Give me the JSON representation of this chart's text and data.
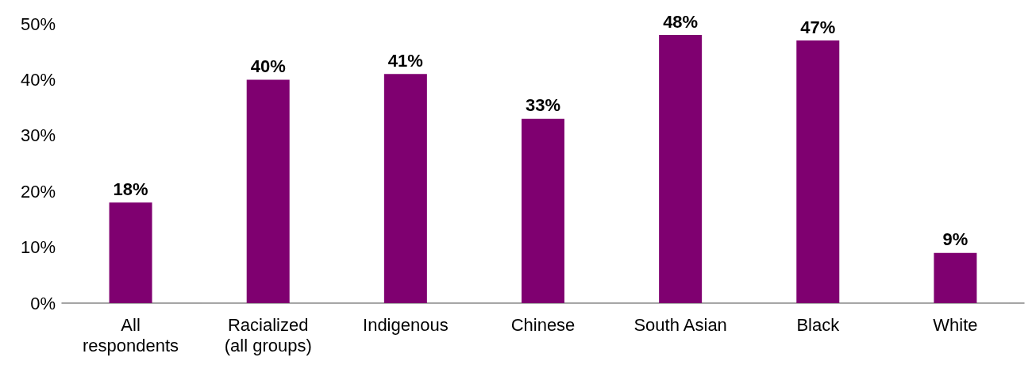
{
  "chart_data": {
    "type": "bar",
    "categories": [
      "All\nrespondents",
      "Racialized\n(all groups)",
      "Indigenous",
      "Chinese",
      "South Asian",
      "Black",
      "White"
    ],
    "values": [
      18,
      40,
      41,
      33,
      48,
      47,
      9
    ],
    "value_labels": [
      "18%",
      "40%",
      "41%",
      "33%",
      "48%",
      "47%",
      "9%"
    ],
    "color": "#7f0070",
    "ylim": [
      0,
      50
    ],
    "yticks": [
      {
        "value": 0,
        "label": "0%"
      },
      {
        "value": 10,
        "label": "10%"
      },
      {
        "value": 20,
        "label": "20%"
      },
      {
        "value": 30,
        "label": "30%"
      },
      {
        "value": 40,
        "label": "40%"
      },
      {
        "value": 50,
        "label": "50%"
      }
    ],
    "grid": false
  }
}
